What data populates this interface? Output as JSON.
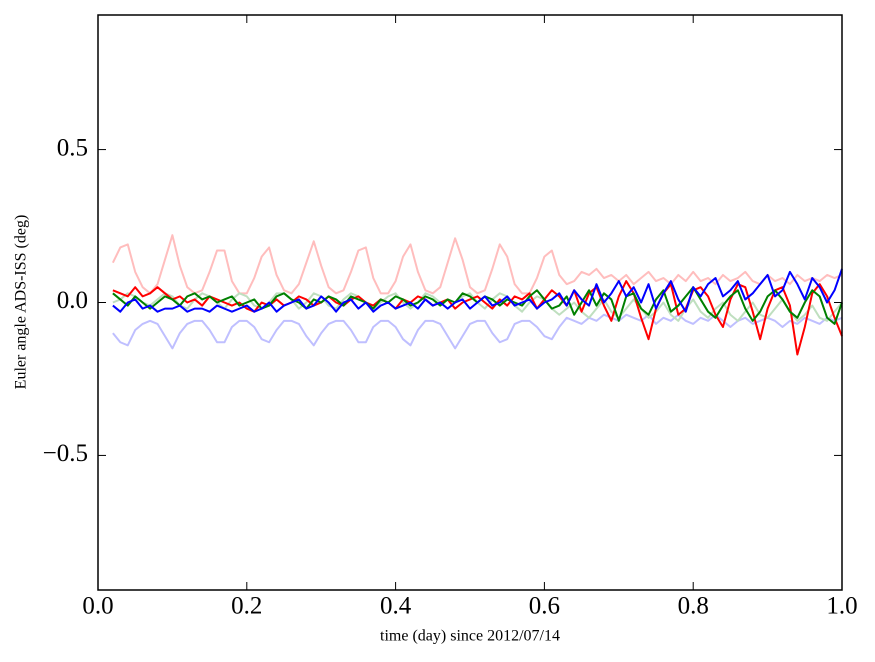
{
  "chart_data": {
    "type": "line",
    "xlabel": "time (day) since 2012/07/14",
    "ylabel": "Euler angle ADS-ISS (deg)",
    "xlim": [
      0,
      1
    ],
    "ylim": [
      -0.94,
      0.94
    ],
    "xticks": [
      {
        "value": 0,
        "label": "0.0"
      },
      {
        "value": 0.2,
        "label": "0.2"
      },
      {
        "value": 0.4,
        "label": "0.4"
      },
      {
        "value": 0.6,
        "label": "0.6"
      },
      {
        "value": 0.8,
        "label": "0.8"
      },
      {
        "value": 1,
        "label": "1.0"
      }
    ],
    "yticks": [
      {
        "value": -0.5,
        "label": "−0.5"
      },
      {
        "value": 0,
        "label": "0.0"
      },
      {
        "value": 0.5,
        "label": "0.5"
      }
    ],
    "grid": false,
    "x": [
      0.02,
      0.03,
      0.04,
      0.05,
      0.06,
      0.07,
      0.08,
      0.09,
      0.1,
      0.11,
      0.12,
      0.13,
      0.14,
      0.15,
      0.16,
      0.17,
      0.18,
      0.19,
      0.2,
      0.21,
      0.22,
      0.23,
      0.24,
      0.25,
      0.26,
      0.27,
      0.28,
      0.29,
      0.3,
      0.31,
      0.32,
      0.33,
      0.34,
      0.35,
      0.36,
      0.37,
      0.38,
      0.39,
      0.4,
      0.41,
      0.42,
      0.43,
      0.44,
      0.45,
      0.46,
      0.47,
      0.48,
      0.49,
      0.5,
      0.51,
      0.52,
      0.53,
      0.54,
      0.55,
      0.56,
      0.57,
      0.58,
      0.59,
      0.6,
      0.61,
      0.62,
      0.63,
      0.64,
      0.65,
      0.66,
      0.67,
      0.68,
      0.69,
      0.7,
      0.71,
      0.72,
      0.73,
      0.74,
      0.75,
      0.76,
      0.77,
      0.78,
      0.79,
      0.8,
      0.81,
      0.82,
      0.83,
      0.84,
      0.85,
      0.86,
      0.87,
      0.88,
      0.89,
      0.9,
      0.91,
      0.92,
      0.93,
      0.94,
      0.95,
      0.96,
      0.97,
      0.98,
      0.99,
      1.0
    ],
    "series": [
      {
        "color": "#ffbdbd",
        "values": [
          0.13,
          0.18,
          0.19,
          0.1,
          0.05,
          0.03,
          0.06,
          0.14,
          0.22,
          0.12,
          0.05,
          0.03,
          0.04,
          0.1,
          0.17,
          0.17,
          0.07,
          0.03,
          0.03,
          0.08,
          0.15,
          0.18,
          0.09,
          0.04,
          0.03,
          0.06,
          0.13,
          0.2,
          0.12,
          0.05,
          0.03,
          0.04,
          0.1,
          0.17,
          0.18,
          0.08,
          0.03,
          0.03,
          0.07,
          0.15,
          0.19,
          0.1,
          0.04,
          0.03,
          0.05,
          0.13,
          0.21,
          0.14,
          0.05,
          0.03,
          0.04,
          0.11,
          0.19,
          0.15,
          0.06,
          0.03,
          0.03,
          0.08,
          0.15,
          0.17,
          0.09,
          0.06,
          0.07,
          0.1,
          0.09,
          0.11,
          0.08,
          0.09,
          0.07,
          0.09,
          0.06,
          0.08,
          0.1,
          0.07,
          0.08,
          0.06,
          0.09,
          0.07,
          0.1,
          0.07,
          0.08,
          0.06,
          0.09,
          0.07,
          0.08,
          0.1,
          0.07,
          0.06,
          0.09,
          0.07,
          0.08,
          0.06,
          0.09,
          0.07,
          0.08,
          0.07,
          0.09,
          0.08,
          0.09
        ]
      },
      {
        "color": "#bfbfff",
        "values": [
          -0.1,
          -0.13,
          -0.14,
          -0.09,
          -0.07,
          -0.06,
          -0.07,
          -0.11,
          -0.15,
          -0.1,
          -0.07,
          -0.06,
          -0.06,
          -0.09,
          -0.13,
          -0.13,
          -0.08,
          -0.06,
          -0.06,
          -0.08,
          -0.12,
          -0.13,
          -0.09,
          -0.06,
          -0.06,
          -0.07,
          -0.11,
          -0.14,
          -0.1,
          -0.07,
          -0.06,
          -0.06,
          -0.09,
          -0.13,
          -0.13,
          -0.08,
          -0.06,
          -0.06,
          -0.08,
          -0.12,
          -0.14,
          -0.09,
          -0.06,
          -0.06,
          -0.07,
          -0.11,
          -0.15,
          -0.11,
          -0.07,
          -0.06,
          -0.06,
          -0.1,
          -0.13,
          -0.12,
          -0.07,
          -0.06,
          -0.06,
          -0.08,
          -0.11,
          -0.12,
          -0.08,
          -0.05,
          -0.06,
          -0.07,
          -0.05,
          -0.06,
          -0.04,
          -0.05,
          -0.06,
          -0.04,
          -0.05,
          -0.06,
          -0.04,
          -0.07,
          -0.05,
          -0.06,
          -0.04,
          -0.06,
          -0.07,
          -0.05,
          -0.06,
          -0.04,
          -0.06,
          -0.08,
          -0.06,
          -0.05,
          -0.07,
          -0.06,
          -0.05,
          -0.06,
          -0.08,
          -0.06,
          -0.07,
          -0.05,
          -0.06,
          -0.07,
          -0.05,
          -0.06,
          -0.05
        ]
      },
      {
        "color": "#bfdfbf",
        "values": [
          0,
          0.01,
          0.03,
          0.02,
          0,
          -0.01,
          0.01,
          0.03,
          0.02,
          -0.01,
          -0.02,
          0.01,
          0.03,
          0.02,
          0,
          -0.02,
          0.01,
          0.03,
          0.02,
          -0.01,
          -0.02,
          0,
          0.03,
          0.03,
          0.01,
          -0.02,
          0,
          0.03,
          0.02,
          -0.01,
          -0.02,
          0.01,
          0.03,
          0.02,
          0,
          -0.02,
          0,
          0.02,
          0.03,
          0,
          -0.02,
          0,
          0.03,
          0.02,
          0,
          -0.02,
          0,
          0.02,
          0.03,
          0,
          -0.02,
          0.01,
          0.03,
          0.02,
          -0.01,
          -0.03,
          0,
          0.02,
          0.01,
          -0.02,
          -0.04,
          -0.02,
          0,
          -0.03,
          -0.05,
          -0.02,
          0.01,
          -0.03,
          -0.05,
          -0.02,
          0.01,
          -0.02,
          -0.05,
          -0.03,
          0,
          -0.04,
          -0.06,
          -0.02,
          0.01,
          -0.03,
          -0.05,
          -0.02,
          0,
          -0.04,
          -0.06,
          -0.03,
          0,
          -0.04,
          -0.05,
          -0.02,
          0.01,
          -0.03,
          -0.06,
          -0.04,
          -0.01,
          -0.05,
          -0.06,
          -0.03,
          0
        ]
      },
      {
        "color": "#ff0000",
        "values": [
          0.04,
          0.03,
          0.02,
          0.05,
          0.02,
          0.03,
          0.05,
          0.03,
          0.01,
          0.02,
          0,
          0.01,
          -0.01,
          0.02,
          0.01,
          0,
          -0.01,
          0,
          -0.02,
          -0.03,
          0,
          -0.01,
          0.01,
          -0.01,
          0,
          0.02,
          0.01,
          -0.01,
          0,
          0.02,
          0,
          -0.01,
          0.01,
          0.02,
          0,
          -0.01,
          0.01,
          0,
          -0.02,
          0.01,
          0,
          0.02,
          0.01,
          -0.01,
          0,
          0.01,
          -0.02,
          0,
          0.01,
          0.02,
          0,
          -0.02,
          0.01,
          -0.01,
          0.02,
          0.01,
          0.03,
          -0.02,
          0.01,
          0.04,
          0.02,
          -0.01,
          0.04,
          -0.03,
          0.03,
          0.05,
          -0.01,
          -0.06,
          0.02,
          0.07,
          0.03,
          -0.05,
          -0.12,
          -0.02,
          0.03,
          0.06,
          -0.04,
          -0.02,
          0.04,
          0.05,
          0.02,
          -0.04,
          -0.08,
          0.01,
          0.06,
          0.05,
          -0.03,
          -0.12,
          -0.02,
          0.04,
          0.05,
          -0.01,
          -0.17,
          -0.08,
          0.03,
          0.06,
          0.02,
          -0.05,
          -0.11
        ]
      },
      {
        "color": "#008000",
        "values": [
          0.03,
          0.01,
          -0.01,
          0.02,
          0,
          -0.02,
          0,
          0.02,
          0.01,
          -0.01,
          0.02,
          0.03,
          0.01,
          0.02,
          0,
          0.01,
          0.02,
          -0.01,
          0,
          0.01,
          -0.02,
          -0.01,
          0.02,
          0.03,
          0.01,
          0,
          -0.02,
          0.01,
          0,
          0.02,
          0.01,
          -0.01,
          0.02,
          0.01,
          0,
          -0.02,
          0.01,
          0,
          0.02,
          0.01,
          -0.01,
          0,
          0.02,
          0.01,
          -0.01,
          0.01,
          0,
          0.03,
          0.02,
          0,
          0.02,
          0.01,
          -0.01,
          0.01,
          0,
          -0.01,
          0.02,
          0.04,
          0.01,
          -0.02,
          -0.01,
          0.02,
          -0.04,
          0,
          0.04,
          -0.01,
          0.03,
          0.01,
          -0.06,
          0.02,
          0.03,
          -0.02,
          -0.04,
          0.01,
          0.04,
          -0.03,
          -0.01,
          0.02,
          0.05,
          0.01,
          -0.03,
          -0.05,
          -0.01,
          0.02,
          0.04,
          -0.02,
          -0.06,
          -0.03,
          0.02,
          0.04,
          0.01,
          -0.03,
          -0.05,
          0,
          0.04,
          0.02,
          -0.05,
          -0.07,
          0
        ]
      },
      {
        "color": "#0000ff",
        "values": [
          -0.01,
          -0.03,
          0,
          0.01,
          -0.02,
          -0.01,
          -0.03,
          -0.02,
          -0.02,
          -0.01,
          -0.03,
          -0.02,
          -0.02,
          -0.03,
          -0.01,
          -0.02,
          -0.03,
          -0.02,
          -0.01,
          -0.03,
          -0.02,
          0,
          -0.03,
          -0.01,
          0,
          0.01,
          -0.02,
          -0.01,
          0.02,
          0,
          -0.03,
          0,
          0.01,
          -0.02,
          0,
          -0.03,
          -0.01,
          0,
          -0.02,
          -0.01,
          0,
          -0.02,
          0.01,
          -0.01,
          0,
          -0.02,
          0,
          0.01,
          -0.02,
          0,
          0.02,
          -0.01,
          0,
          0.02,
          -0.01,
          0,
          0.01,
          -0.02,
          0,
          0.01,
          0.03,
          -0.01,
          0.04,
          0.01,
          -0.01,
          0.06,
          0,
          0.03,
          0.07,
          0.02,
          0.05,
          0,
          0.06,
          -0.02,
          0.03,
          0.07,
          0.01,
          -0.03,
          0.05,
          0.02,
          0.06,
          0.08,
          0.02,
          0.04,
          0.07,
          0.01,
          0.03,
          0.06,
          0.09,
          0.02,
          0.04,
          0.1,
          0.06,
          0.01,
          0.08,
          0.05,
          0,
          0.04,
          0.11
        ]
      }
    ]
  }
}
